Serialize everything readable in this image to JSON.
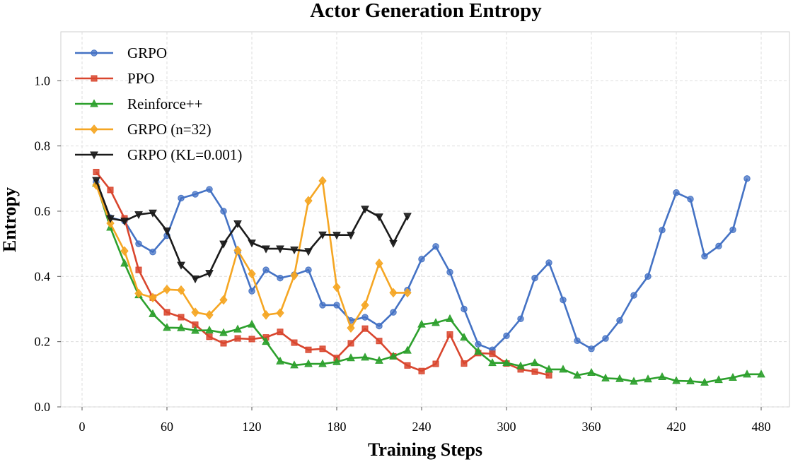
{
  "chart_data": {
    "type": "line",
    "title": "Actor Generation Entropy",
    "xlabel": "Training Steps",
    "ylabel": "Entropy",
    "xlim": [
      -15,
      500
    ],
    "ylim": [
      0,
      1.15
    ],
    "xticks": [
      0,
      60,
      120,
      180,
      240,
      300,
      360,
      420,
      480
    ],
    "yticks": [
      0.0,
      0.2,
      0.4,
      0.6,
      0.8,
      1.0
    ],
    "xtick_labels": [
      "0",
      "60",
      "120",
      "180",
      "240",
      "300",
      "360",
      "420",
      "480"
    ],
    "ytick_labels": [
      "0.0",
      "0.2",
      "0.4",
      "0.6",
      "0.8",
      "1.0"
    ],
    "grid": true,
    "legend_position": "top-left",
    "series": [
      {
        "name": "GRPO",
        "color": "#4472c4",
        "marker": "circle",
        "x": [
          10,
          20,
          30,
          40,
          50,
          60,
          70,
          80,
          90,
          100,
          110,
          120,
          130,
          140,
          150,
          160,
          170,
          180,
          190,
          200,
          210,
          220,
          230,
          240,
          250,
          260,
          270,
          280,
          290,
          300,
          310,
          320,
          330,
          340,
          350,
          360,
          370,
          380,
          390,
          400,
          410,
          420,
          430,
          440,
          450,
          460,
          470
        ],
        "y": [
          0.69,
          0.58,
          0.57,
          0.5,
          0.475,
          0.525,
          0.64,
          0.652,
          0.667,
          0.6,
          0.475,
          0.355,
          0.42,
          0.395,
          0.405,
          0.42,
          0.312,
          0.312,
          0.265,
          0.275,
          0.248,
          0.29,
          0.358,
          0.453,
          0.492,
          0.413,
          0.3,
          0.192,
          0.175,
          0.218,
          0.27,
          0.395,
          0.442,
          0.328,
          0.203,
          0.178,
          0.21,
          0.265,
          0.342,
          0.4,
          0.542,
          0.657,
          0.637,
          0.462,
          0.493,
          0.543,
          0.7
        ]
      },
      {
        "name": "PPO",
        "color": "#d9462e",
        "marker": "square",
        "x": [
          10,
          20,
          30,
          40,
          50,
          60,
          70,
          80,
          90,
          100,
          110,
          120,
          130,
          140,
          150,
          160,
          170,
          180,
          190,
          200,
          210,
          220,
          230,
          240,
          250,
          260,
          270,
          280,
          290,
          300,
          310,
          320,
          330
        ],
        "y": [
          0.72,
          0.665,
          0.578,
          0.42,
          0.335,
          0.29,
          0.275,
          0.252,
          0.215,
          0.195,
          0.21,
          0.208,
          0.213,
          0.23,
          0.197,
          0.175,
          0.178,
          0.15,
          0.195,
          0.24,
          0.202,
          0.155,
          0.127,
          0.11,
          0.132,
          0.222,
          0.133,
          0.165,
          0.163,
          0.133,
          0.115,
          0.108,
          0.097
        ]
      },
      {
        "name": "Reinforce++",
        "color": "#2ca02c",
        "marker": "triangle-up",
        "x": [
          10,
          20,
          30,
          40,
          50,
          60,
          70,
          80,
          90,
          100,
          110,
          120,
          130,
          140,
          150,
          160,
          170,
          180,
          190,
          200,
          210,
          220,
          230,
          240,
          250,
          260,
          270,
          280,
          290,
          300,
          310,
          320,
          330,
          340,
          350,
          360,
          370,
          380,
          390,
          400,
          410,
          420,
          430,
          440,
          450,
          460,
          470,
          480
        ],
        "y": [
          0.685,
          0.55,
          0.44,
          0.343,
          0.285,
          0.243,
          0.242,
          0.234,
          0.235,
          0.227,
          0.238,
          0.253,
          0.2,
          0.14,
          0.128,
          0.132,
          0.132,
          0.138,
          0.15,
          0.152,
          0.142,
          0.155,
          0.173,
          0.253,
          0.258,
          0.27,
          0.213,
          0.17,
          0.135,
          0.135,
          0.125,
          0.135,
          0.115,
          0.115,
          0.097,
          0.105,
          0.088,
          0.086,
          0.078,
          0.085,
          0.092,
          0.08,
          0.079,
          0.075,
          0.083,
          0.09,
          0.1,
          0.1
        ]
      },
      {
        "name": "GRPO (n=32)",
        "color": "#f5a623",
        "marker": "diamond",
        "x": [
          10,
          20,
          30,
          40,
          50,
          60,
          70,
          80,
          90,
          100,
          110,
          120,
          130,
          140,
          150,
          160,
          170,
          180,
          190,
          200,
          210,
          220,
          230
        ],
        "y": [
          0.68,
          0.563,
          0.478,
          0.348,
          0.335,
          0.36,
          0.358,
          0.29,
          0.282,
          0.328,
          0.48,
          0.408,
          0.282,
          0.288,
          0.403,
          0.632,
          0.693,
          0.367,
          0.242,
          0.312,
          0.44,
          0.35,
          0.35
        ]
      },
      {
        "name": "GRPO (KL=0.001)",
        "color": "#1a1a1a",
        "marker": "triangle-down",
        "x": [
          10,
          20,
          30,
          40,
          50,
          60,
          70,
          80,
          90,
          100,
          110,
          120,
          130,
          140,
          150,
          160,
          170,
          180,
          190,
          200,
          210,
          220,
          230
        ],
        "y": [
          0.695,
          0.578,
          0.57,
          0.59,
          0.595,
          0.54,
          0.435,
          0.393,
          0.41,
          0.5,
          0.562,
          0.503,
          0.485,
          0.485,
          0.482,
          0.477,
          0.528,
          0.527,
          0.527,
          0.607,
          0.583,
          0.502,
          0.585
        ]
      }
    ]
  }
}
